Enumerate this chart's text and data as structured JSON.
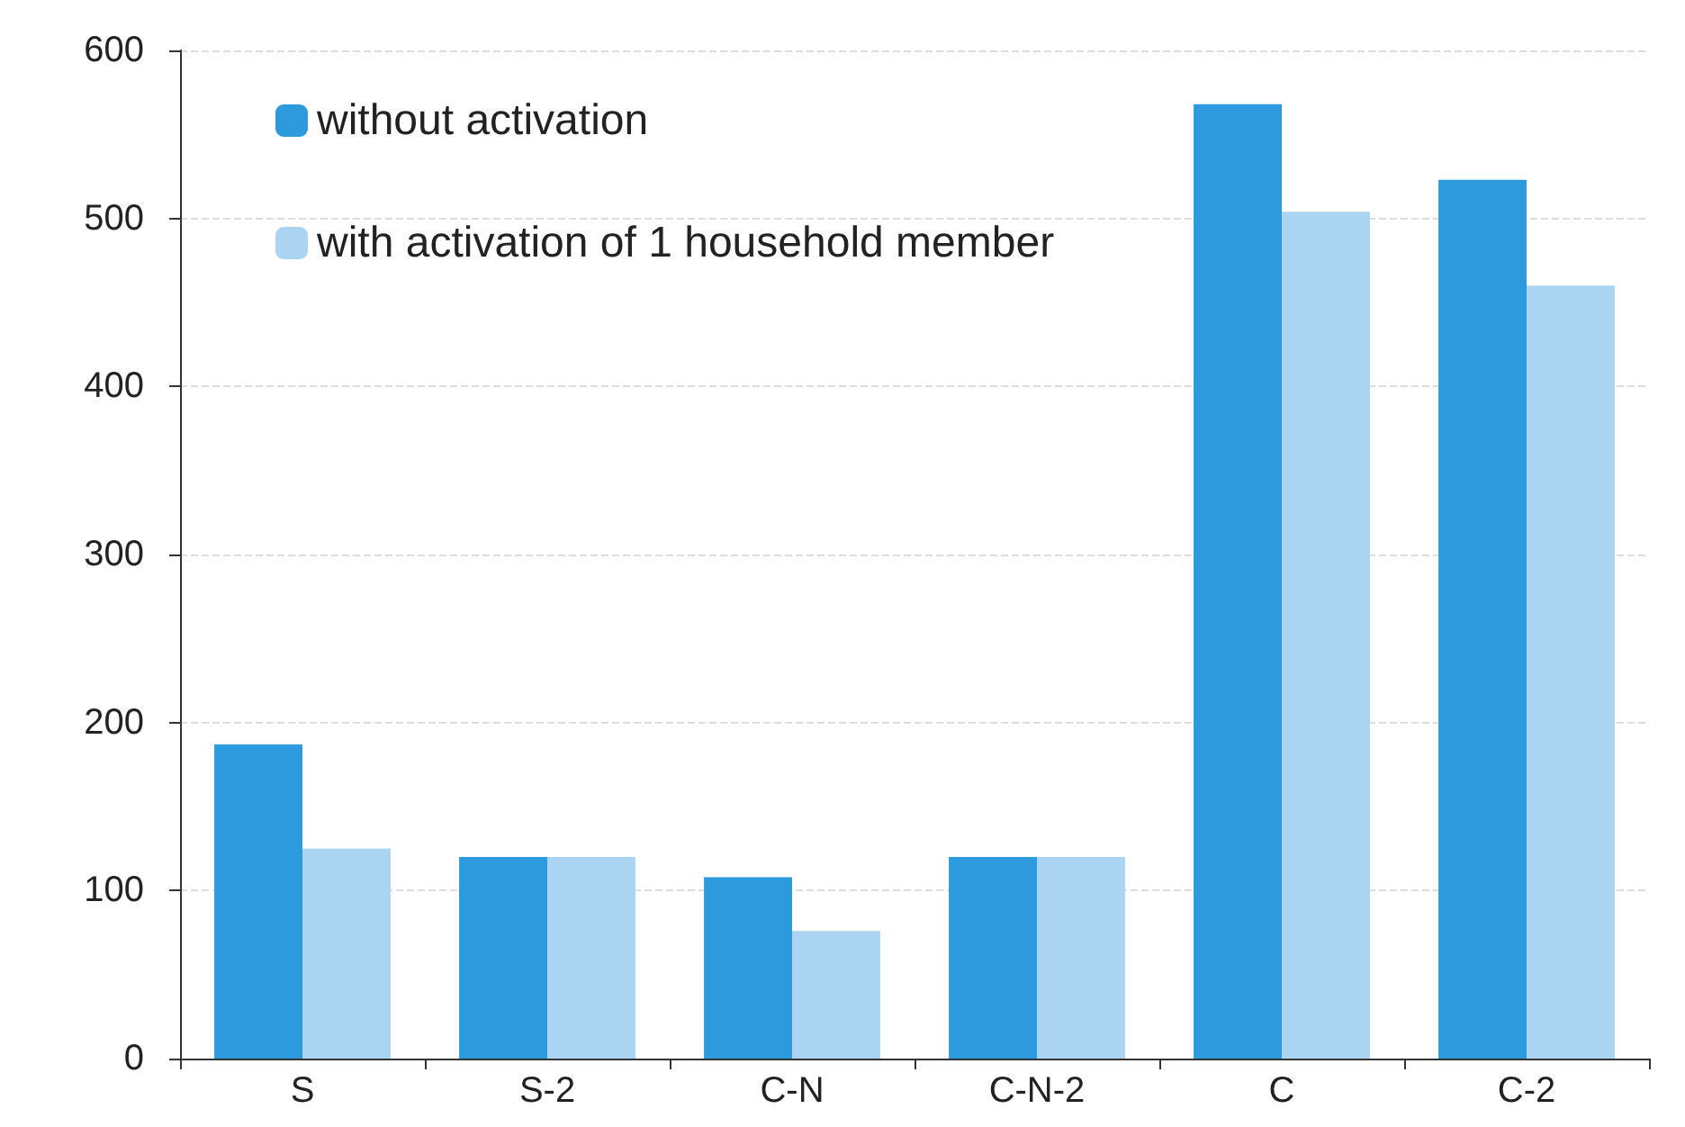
{
  "chart_data": {
    "type": "bar",
    "categories": [
      "S",
      "S-2",
      "C-N",
      "C-N-2",
      "C",
      "C-2"
    ],
    "series": [
      {
        "name": "without activation",
        "color": "#2e9ade",
        "values": [
          187,
          120,
          108,
          120,
          568,
          523
        ]
      },
      {
        "name": "with activation of 1 household member",
        "color": "#aad4f2",
        "values": [
          125,
          120,
          76,
          120,
          504,
          460
        ]
      }
    ],
    "ylim": [
      0,
      600
    ],
    "yticks": [
      0,
      100,
      200,
      300,
      400,
      500,
      600
    ],
    "grid": "y",
    "legend": "top left"
  }
}
